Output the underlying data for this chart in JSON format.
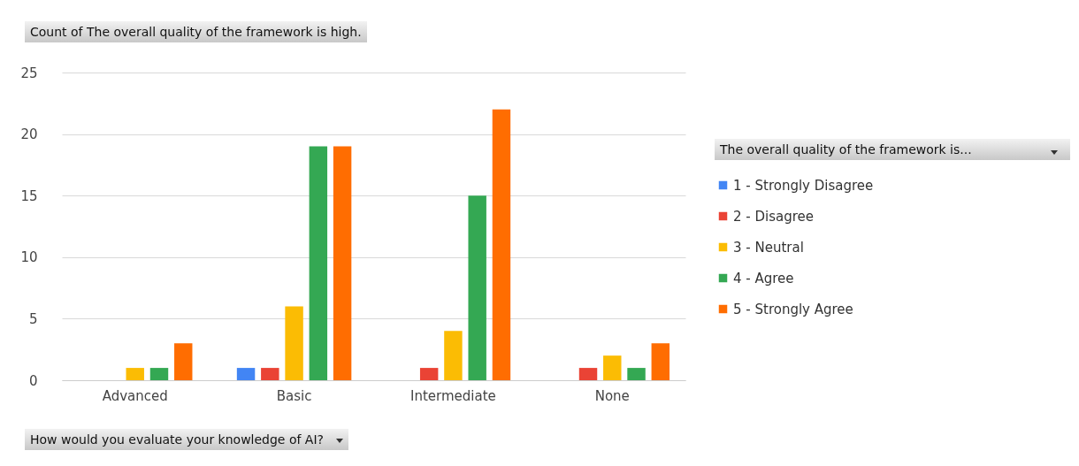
{
  "chart_data": {
    "type": "bar",
    "title": "Count of The overall quality of the framework is high.",
    "xlabel": "How would you evaluate your knowledge of AI?",
    "legend_title": "The overall quality of the framework is...",
    "categories": [
      "Advanced",
      "Basic",
      "Intermediate",
      "None"
    ],
    "series": [
      {
        "name": "1 - Strongly Disagree",
        "color": "#4285f4",
        "values": [
          0,
          1,
          0,
          0
        ]
      },
      {
        "name": "2 - Disagree",
        "color": "#ea4335",
        "values": [
          0,
          1,
          1,
          1
        ]
      },
      {
        "name": "3 - Neutral",
        "color": "#fbbc04",
        "values": [
          1,
          6,
          4,
          2
        ]
      },
      {
        "name": "4 - Agree",
        "color": "#34a853",
        "values": [
          1,
          19,
          15,
          1
        ]
      },
      {
        "name": "5 - Strongly Agree",
        "color": "#ff6d01",
        "values": [
          3,
          19,
          22,
          3
        ]
      }
    ],
    "ylim": [
      0,
      25
    ],
    "yticks": [
      0,
      5,
      10,
      15,
      20,
      25
    ],
    "grid": "y",
    "legend": "right"
  }
}
